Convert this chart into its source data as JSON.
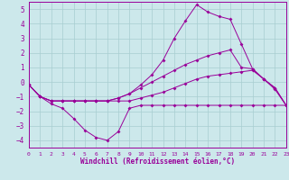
{
  "bg_color": "#cce8eb",
  "grid_color": "#a8cdd0",
  "line_color": "#990099",
  "xlim": [
    0,
    23
  ],
  "ylim": [
    -4.5,
    5.5
  ],
  "xticks": [
    0,
    1,
    2,
    3,
    4,
    5,
    6,
    7,
    8,
    9,
    10,
    11,
    12,
    13,
    14,
    15,
    16,
    17,
    18,
    19,
    20,
    21,
    22,
    23
  ],
  "yticks": [
    -4,
    -3,
    -2,
    -1,
    0,
    1,
    2,
    3,
    4,
    5
  ],
  "xlabel": "Windchill (Refroidissement éolien,°C)",
  "series": [
    {
      "x": [
        0,
        1,
        2,
        3,
        4,
        5,
        6,
        7,
        8,
        9,
        10,
        11,
        12,
        13,
        14,
        15,
        16,
        17,
        18,
        19,
        20,
        21,
        22,
        23
      ],
      "y": [
        -0.2,
        -1.0,
        -1.5,
        -1.8,
        -2.5,
        -3.3,
        -3.8,
        -4.0,
        -3.4,
        -1.8,
        -1.6,
        -1.6,
        -1.6,
        -1.6,
        -1.6,
        -1.6,
        -1.6,
        -1.6,
        -1.6,
        -1.6,
        -1.6,
        -1.6,
        -1.6,
        -1.6
      ]
    },
    {
      "x": [
        0,
        1,
        2,
        3,
        4,
        5,
        6,
        7,
        8,
        9,
        10,
        11,
        12,
        13,
        14,
        15,
        16,
        17,
        18,
        19,
        20,
        21,
        22,
        23
      ],
      "y": [
        -0.2,
        -1.0,
        -1.3,
        -1.3,
        -1.3,
        -1.3,
        -1.3,
        -1.3,
        -1.3,
        -1.3,
        -1.1,
        -0.9,
        -0.7,
        -0.4,
        -0.1,
        0.2,
        0.4,
        0.5,
        0.6,
        0.7,
        0.8,
        0.2,
        -0.4,
        -1.6
      ]
    },
    {
      "x": [
        0,
        1,
        2,
        3,
        4,
        5,
        6,
        7,
        8,
        9,
        10,
        11,
        12,
        13,
        14,
        15,
        16,
        17,
        18,
        19,
        20,
        21,
        22,
        23
      ],
      "y": [
        -0.2,
        -1.0,
        -1.3,
        -1.3,
        -1.3,
        -1.3,
        -1.3,
        -1.3,
        -1.1,
        -0.8,
        -0.4,
        0.0,
        0.4,
        0.8,
        1.2,
        1.5,
        1.8,
        2.0,
        2.2,
        1.0,
        0.9,
        0.2,
        -0.4,
        -1.6
      ]
    },
    {
      "x": [
        0,
        1,
        2,
        3,
        4,
        5,
        6,
        7,
        8,
        9,
        10,
        11,
        12,
        13,
        14,
        15,
        16,
        17,
        18,
        19,
        20,
        21,
        22,
        23
      ],
      "y": [
        -0.2,
        -1.0,
        -1.3,
        -1.3,
        -1.3,
        -1.3,
        -1.3,
        -1.3,
        -1.1,
        -0.8,
        -0.2,
        0.5,
        1.5,
        3.0,
        4.2,
        5.3,
        4.8,
        4.5,
        4.3,
        2.6,
        0.9,
        0.2,
        -0.5,
        -1.6
      ]
    }
  ]
}
